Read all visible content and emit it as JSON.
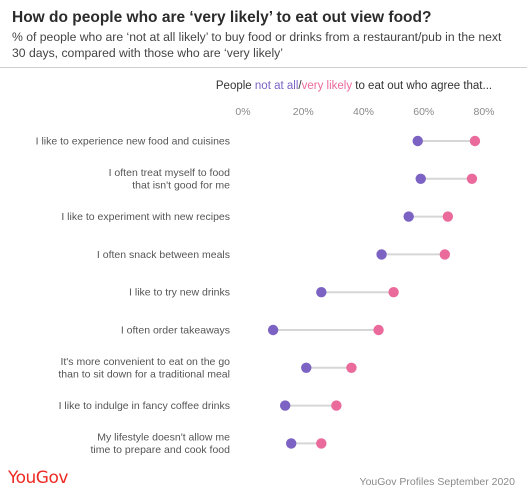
{
  "title": "How do people who are ‘very likely’ to eat out view food?",
  "subtitle": "% of people who are ‘not at all likely’ to buy food or drinks from a restaurant/pub in the next 30 days, compared with those who are ‘very likely’",
  "legend": {
    "prefix": "People ",
    "not_at_all": "not at all",
    "separator": "/",
    "very_likely": "very likely",
    "suffix": " to eat out who agree that..."
  },
  "colors": {
    "not_at_all": "#7b62c3",
    "very_likely": "#ea6a9c",
    "connector": "#d6d6d6",
    "logo": "#ee2a24"
  },
  "footer": {
    "logo": "YouGov",
    "source": "YouGov Profiles September 2020"
  },
  "chart_data": {
    "type": "dumbbell",
    "x_ticks": [
      "0%",
      "20%",
      "40%",
      "60%",
      "80%"
    ],
    "xlim": [
      0,
      80
    ],
    "grid": false,
    "categories": [
      [
        "I like to experience new food and cuisines"
      ],
      [
        "I often treat myself to food",
        "that isn't good for me"
      ],
      [
        "I like to experiment with new recipes"
      ],
      [
        "I often snack between meals"
      ],
      [
        "I like to try new drinks"
      ],
      [
        "I often order takeaways"
      ],
      [
        "It's more convenient to eat on the go",
        "than to sit down for a traditional meal"
      ],
      [
        "I like to indulge in fancy coffee drinks"
      ],
      [
        "My lifestyle doesn't allow me",
        "time to prepare and cook food"
      ]
    ],
    "series": [
      {
        "name": "not at all",
        "values": [
          58,
          59,
          55,
          46,
          26,
          10,
          21,
          14,
          16
        ]
      },
      {
        "name": "very likely",
        "values": [
          77,
          76,
          68,
          67,
          50,
          45,
          36,
          31,
          26
        ]
      }
    ]
  }
}
